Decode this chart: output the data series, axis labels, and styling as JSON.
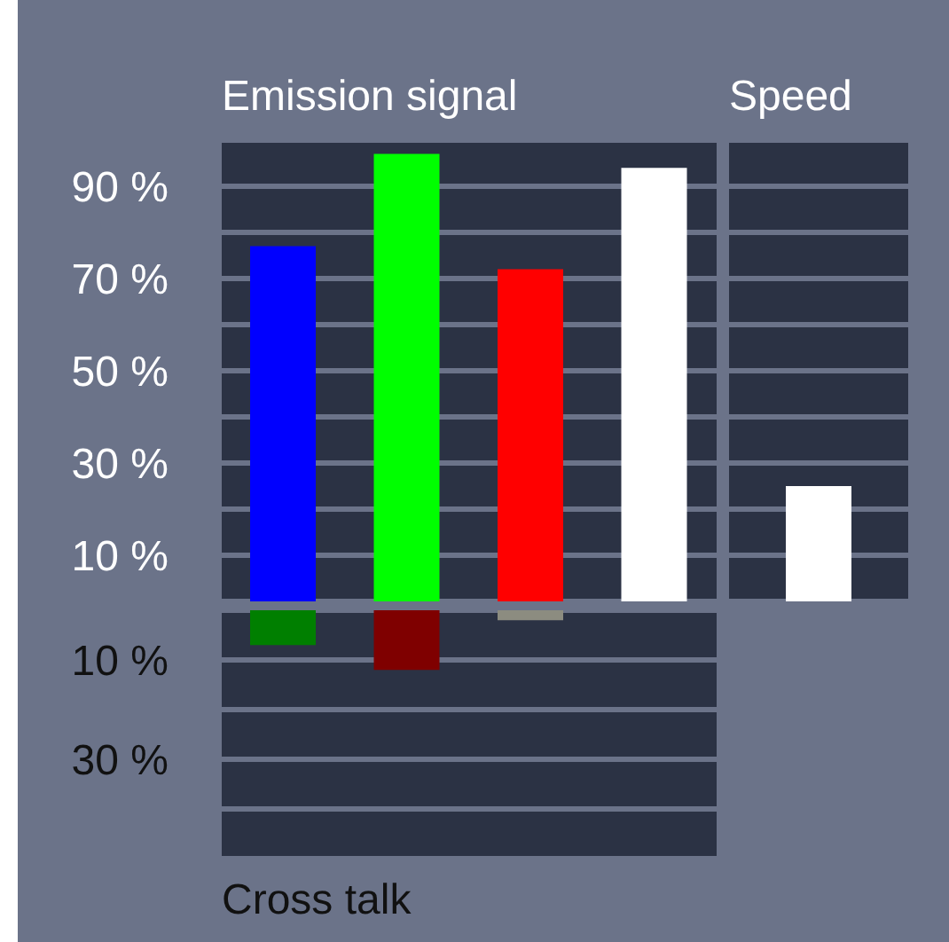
{
  "chart_data": [
    {
      "type": "bar",
      "title": "Emission signal",
      "categories": [
        null,
        null,
        null,
        null
      ],
      "values": [
        77,
        97,
        72,
        94
      ],
      "colors": [
        "#0000ff",
        "#00ff00",
        "#ff0000",
        "#ffffff"
      ],
      "ylim": [
        0,
        100
      ],
      "yticks": [
        {
          "value": 10,
          "label": "10 %"
        },
        {
          "value": 20,
          "label": null
        },
        {
          "value": 30,
          "label": "30 %"
        },
        {
          "value": 40,
          "label": null
        },
        {
          "value": 50,
          "label": "50 %"
        },
        {
          "value": 60,
          "label": null
        },
        {
          "value": 70,
          "label": "70 %"
        },
        {
          "value": 80,
          "label": null
        },
        {
          "value": 90,
          "label": "90 %"
        }
      ],
      "grid": "y"
    },
    {
      "type": "bar",
      "title": "Speed",
      "categories": [
        null
      ],
      "values": [
        25
      ],
      "colors": [
        "#ffffff"
      ],
      "ylim": [
        0,
        100
      ],
      "yticks": [
        {
          "value": 10,
          "label": null
        },
        {
          "value": 20,
          "label": null
        },
        {
          "value": 30,
          "label": null
        },
        {
          "value": 40,
          "label": null
        },
        {
          "value": 50,
          "label": null
        },
        {
          "value": 60,
          "label": null
        },
        {
          "value": 70,
          "label": null
        },
        {
          "value": 80,
          "label": null
        },
        {
          "value": 90,
          "label": null
        }
      ],
      "grid": "y",
      "tick_labels": false
    },
    {
      "type": "bar",
      "xlabel": "Cross talk",
      "categories": [
        null,
        null,
        null,
        null
      ],
      "values": [
        7,
        12,
        2,
        null
      ],
      "colors": [
        "#007f00",
        "#7f0000",
        "#8c8c80",
        null
      ],
      "ylim": [
        50,
        0
      ],
      "yticks": [
        {
          "value": 10,
          "label": "10 %"
        },
        {
          "value": 20,
          "label": null
        },
        {
          "value": 30,
          "label": "30 %"
        },
        {
          "value": 40,
          "label": null
        }
      ],
      "grid": "y"
    }
  ]
}
